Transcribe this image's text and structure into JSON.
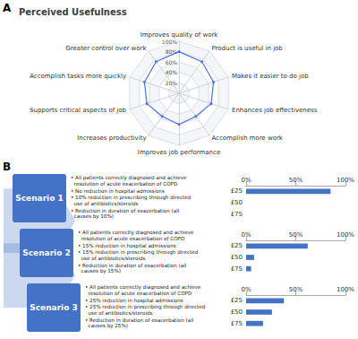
{
  "chart_data": [
    {
      "type": "radar",
      "title": "Perceived Usefulness",
      "annotations": [
        "A",
        "B"
      ],
      "categories": [
        "Improves quality of work",
        "Greater control over work",
        "Accomplish tasks more quickly",
        "Supports critical aspects of job",
        "Increases productivity",
        "Improves job performance",
        "Accomplish more work",
        "Enhances job effectiveness",
        "Makes it easier to do job",
        "Product is useful in job"
      ],
      "values": [
        80,
        75,
        70,
        65,
        55,
        60,
        55,
        65,
        70,
        75
      ],
      "ylim": [
        0,
        100
      ],
      "yticks": [
        {
          "value": 20,
          "label": "20%"
        },
        {
          "value": 40,
          "label": "40%"
        },
        {
          "value": 60,
          "label": "60%"
        },
        {
          "value": 80,
          "label": "80%"
        },
        {
          "value": 100,
          "label": "100%"
        }
      ],
      "grid": true
    },
    {
      "type": "bar",
      "orientation": "horizontal",
      "title": "Scenario 1",
      "annotations": [
        "• All patients correctly diagnosed and achieve\n  resolution of acute exacerbation of COPD",
        "• No reduction in hospital admissions",
        "• 10% reduction in prescribing through directed\n  use of antibiotics/steroids",
        "• Reduction in duration of exacerbation (all\n  causes by 10%)"
      ],
      "categories": [
        "£25",
        "£50",
        "£75"
      ],
      "values": [
        85,
        0,
        0
      ],
      "color": "#4472C4",
      "xlim": [
        0,
        100
      ],
      "xticks": [
        {
          "value": 0,
          "label": "0%"
        },
        {
          "value": 50,
          "label": "50%"
        },
        {
          "value": 100,
          "label": "100%"
        }
      ],
      "grid": false
    },
    {
      "type": "bar",
      "orientation": "horizontal",
      "title": "Scenario 2",
      "annotations": [
        "• All patients correctly diagnosed and achieve\n  resolution of acute exacerbation of COPD",
        "• 15% reduction in hospital admissions",
        "• 15% reduction in prescribing through directed\n  use of antibiotics/steroids",
        "• Reduction in duration of exacerbation (all\n  causes by 15%)"
      ],
      "categories": [
        "£25",
        "£50",
        "£75"
      ],
      "values": [
        62,
        8,
        5
      ],
      "color": "#4472C4",
      "xlim": [
        0,
        100
      ],
      "xticks": [
        {
          "value": 0,
          "label": "0%"
        },
        {
          "value": 50,
          "label": "50%"
        },
        {
          "value": 100,
          "label": "100%"
        }
      ],
      "grid": false
    },
    {
      "type": "bar",
      "orientation": "horizontal",
      "title": "Scenario 3",
      "annotations": [
        "• All patients correctly diagnosed and achieve\n  resolution of acute exacerbation of COPD",
        "• 25% reduction in hospital admissions",
        "• 25% reduction in prescribing through directed\n  use of antibiotics/steroids",
        "• Reduction in duration of exacerbation (all\n  causes by 25%)"
      ],
      "categories": [
        "£25",
        "£50",
        "£75"
      ],
      "values": [
        38,
        26,
        17
      ],
      "color": "#4472C4",
      "xlim": [
        0,
        100
      ],
      "xticks": [
        {
          "value": 0,
          "label": "0%"
        },
        {
          "value": 50,
          "label": "50%"
        },
        {
          "value": 100,
          "label": "100%"
        }
      ],
      "grid": false
    }
  ]
}
